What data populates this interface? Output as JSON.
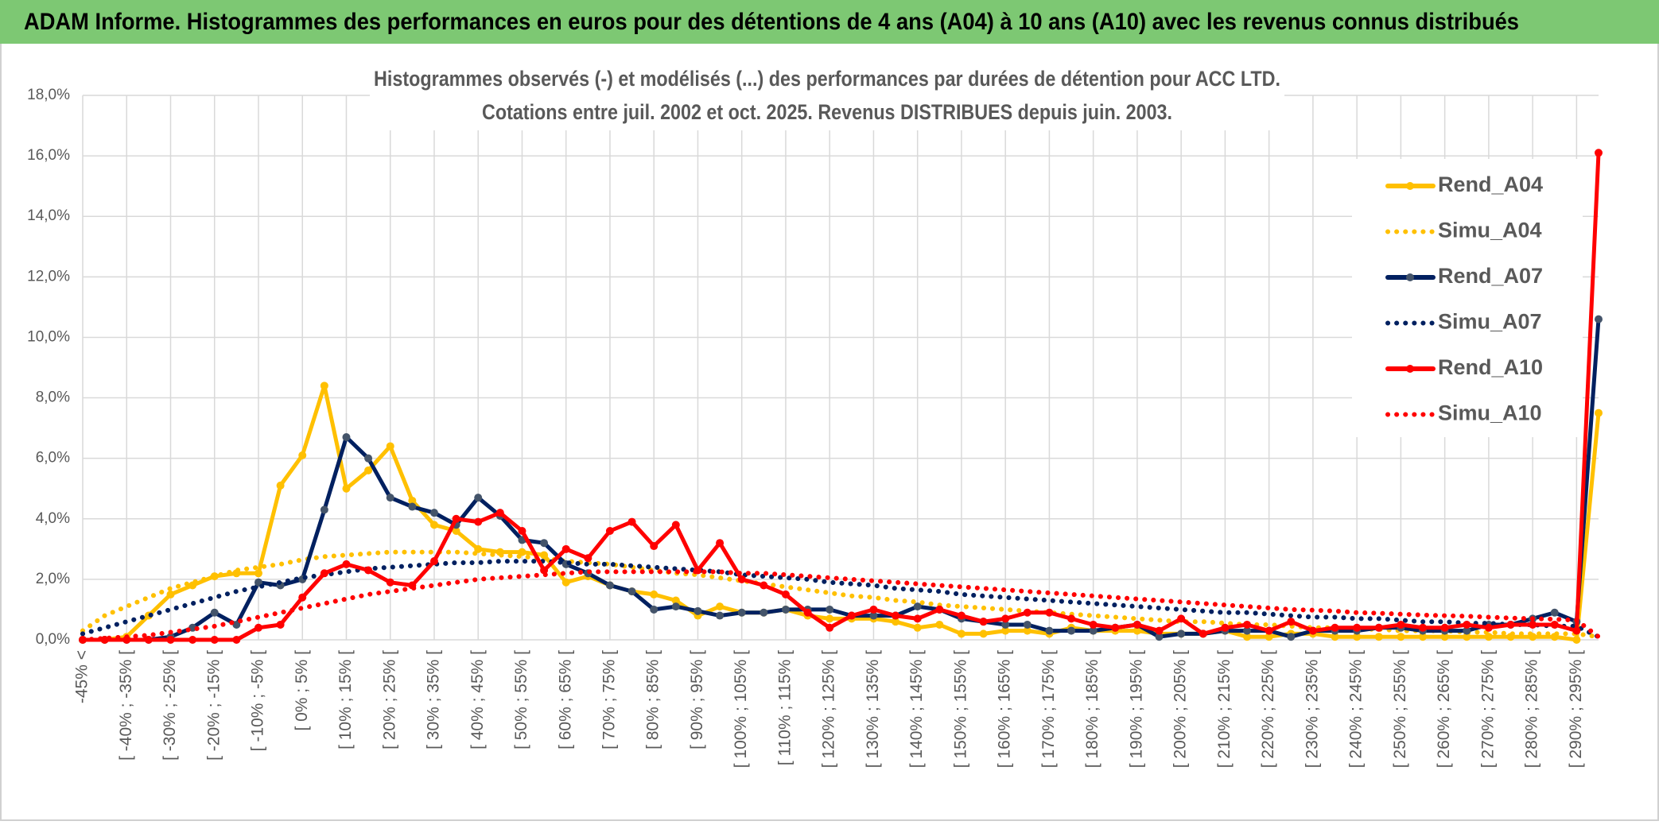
{
  "header": {
    "title": "ADAM Informe. Histogrammes des performances en euros pour des détentions de 4 ans (A04) à 10 ans (A10) avec les revenus connus distribués"
  },
  "chart_data": {
    "type": "line",
    "title": "Histogrammes observés (-) et modélisés (...) des performances par durées de détention pour ACC LTD.",
    "subtitle": "Cotations entre juil. 2002 et oct. 2025. Revenus DISTRIBUES depuis juin. 2003.",
    "categories": [
      "-45% <",
      null,
      "[ -40% ; -35% [",
      null,
      "[ -30% ; -25% [",
      null,
      "[ -20% ; -15% [",
      null,
      "[ -10% ; -5% [",
      null,
      "[ 0% ; 5% [",
      null,
      "[ 10% ; 15% [",
      null,
      "[ 20% ; 25% [",
      null,
      "[ 30% ; 35% [",
      null,
      "[ 40% ; 45% [",
      null,
      "[ 50% ; 55% [",
      null,
      "[ 60% ; 65% [",
      null,
      "[ 70% ; 75% [",
      null,
      "[ 80% ; 85% [",
      null,
      "[ 90% ; 95% [",
      null,
      "[ 100% ; 105% [",
      null,
      "[ 110% ; 115% [",
      null,
      "[ 120% ; 125% [",
      null,
      "[ 130% ; 135% [",
      null,
      "[ 140% ; 145% [",
      null,
      "[ 150% ; 155% [",
      null,
      "[ 160% ; 165% [",
      null,
      "[ 170% ; 175% [",
      null,
      "[ 180% ; 185% [",
      null,
      "[ 190% ; 195% [",
      null,
      "[ 200% ; 205% [",
      null,
      "[ 210% ; 215% [",
      null,
      "[ 220% ; 225% [",
      null,
      "[ 230% ; 235% [",
      null,
      "[ 240% ; 245% [",
      null,
      "[ 250% ; 255% [",
      null,
      "[ 260% ; 265% [",
      null,
      "[ 270% ; 275% [",
      null,
      "[ 280% ; 285% [",
      null,
      "[ 290% ; 295% [",
      null
    ],
    "series": [
      {
        "name": "Rend_A04",
        "color": "#FFC000",
        "line_style": "solid",
        "values": [
          0,
          0,
          0.1,
          0.8,
          1.5,
          1.8,
          2.1,
          2.2,
          2.2,
          5.1,
          6.1,
          8.4,
          5.0,
          5.6,
          6.4,
          4.6,
          3.8,
          3.6,
          3.0,
          2.9,
          2.9,
          2.8,
          1.9,
          2.1,
          1.8,
          1.6,
          1.5,
          1.3,
          0.8,
          1.1,
          0.9,
          0.9,
          1.0,
          0.8,
          0.7,
          0.7,
          0.7,
          0.6,
          0.4,
          0.5,
          0.2,
          0.2,
          0.3,
          0.3,
          0.2,
          0.4,
          0.3,
          0.3,
          0.3,
          0.2,
          0.2,
          0.2,
          0.3,
          0.1,
          0.1,
          0.2,
          0.2,
          0.1,
          0.1,
          0.1,
          0.1,
          0.1,
          0.1,
          0.1,
          0.1,
          0.1,
          0.1,
          0.1,
          0.0,
          7.5
        ]
      },
      {
        "name": "Simu_A04",
        "color": "#FFC000",
        "line_style": "dotted",
        "values": [
          0.3,
          0.8,
          1.1,
          1.4,
          1.7,
          1.9,
          2.1,
          2.3,
          2.4,
          2.5,
          2.65,
          2.75,
          2.8,
          2.85,
          2.9,
          2.9,
          2.9,
          2.9,
          2.85,
          2.8,
          2.75,
          2.7,
          2.6,
          2.55,
          2.5,
          2.4,
          2.3,
          2.2,
          2.15,
          2.05,
          1.95,
          1.85,
          1.75,
          1.65,
          1.55,
          1.45,
          1.4,
          1.3,
          1.25,
          1.15,
          1.1,
          1.05,
          1.0,
          0.95,
          0.9,
          0.85,
          0.8,
          0.75,
          0.7,
          0.65,
          0.6,
          0.6,
          0.55,
          0.5,
          0.5,
          0.45,
          0.4,
          0.4,
          0.35,
          0.35,
          0.3,
          0.3,
          0.3,
          0.25,
          0.25,
          0.2,
          0.2,
          0.2,
          0.2,
          0.1
        ]
      },
      {
        "name": "Rend_A07",
        "color": "#002060",
        "line_style": "solid",
        "values": [
          0,
          0,
          0,
          0,
          0.1,
          0.4,
          0.9,
          0.5,
          1.9,
          1.8,
          2.0,
          4.3,
          6.7,
          6.0,
          4.7,
          4.4,
          4.2,
          3.8,
          4.7,
          4.1,
          3.3,
          3.2,
          2.5,
          2.2,
          1.8,
          1.6,
          1.0,
          1.1,
          0.95,
          0.8,
          0.9,
          0.9,
          1.0,
          1.0,
          1.0,
          0.8,
          0.8,
          0.8,
          1.1,
          1.0,
          0.7,
          0.6,
          0.5,
          0.5,
          0.3,
          0.3,
          0.3,
          0.4,
          0.5,
          0.1,
          0.2,
          0.2,
          0.3,
          0.3,
          0.3,
          0.1,
          0.3,
          0.3,
          0.3,
          0.4,
          0.4,
          0.3,
          0.3,
          0.3,
          0.5,
          0.5,
          0.7,
          0.9,
          0.6,
          10.6
        ]
      },
      {
        "name": "Simu_A07",
        "color": "#002060",
        "line_style": "dotted",
        "values": [
          0.2,
          0.4,
          0.6,
          0.8,
          1.0,
          1.2,
          1.4,
          1.6,
          1.75,
          1.9,
          2.05,
          2.15,
          2.25,
          2.35,
          2.4,
          2.45,
          2.5,
          2.55,
          2.55,
          2.6,
          2.6,
          2.6,
          2.55,
          2.5,
          2.5,
          2.45,
          2.4,
          2.35,
          2.3,
          2.25,
          2.15,
          2.1,
          2.05,
          2.0,
          1.9,
          1.85,
          1.8,
          1.7,
          1.65,
          1.6,
          1.5,
          1.45,
          1.4,
          1.35,
          1.3,
          1.25,
          1.2,
          1.15,
          1.1,
          1.05,
          1.0,
          0.95,
          0.9,
          0.9,
          0.85,
          0.8,
          0.75,
          0.75,
          0.7,
          0.7,
          0.65,
          0.6,
          0.6,
          0.55,
          0.55,
          0.5,
          0.5,
          0.45,
          0.45,
          0.1
        ]
      },
      {
        "name": "Rend_A10",
        "color": "#FF0000",
        "line_style": "solid",
        "values": [
          0,
          0,
          0,
          0,
          0,
          0,
          0,
          0,
          0.4,
          0.5,
          1.4,
          2.2,
          2.5,
          2.3,
          1.9,
          1.8,
          2.6,
          4.0,
          3.9,
          4.2,
          3.6,
          2.3,
          3.0,
          2.7,
          3.6,
          3.9,
          3.1,
          3.8,
          2.3,
          3.2,
          2.0,
          1.8,
          1.5,
          0.9,
          0.4,
          0.8,
          1.0,
          0.8,
          0.7,
          1.0,
          0.8,
          0.6,
          0.7,
          0.9,
          0.9,
          0.7,
          0.5,
          0.4,
          0.5,
          0.3,
          0.7,
          0.2,
          0.4,
          0.5,
          0.3,
          0.6,
          0.3,
          0.4,
          0.4,
          0.4,
          0.5,
          0.4,
          0.4,
          0.5,
          0.4,
          0.5,
          0.5,
          0.5,
          0.3,
          16.1
        ]
      },
      {
        "name": "Simu_A10",
        "color": "#FF0000",
        "line_style": "dotted",
        "values": [
          0.0,
          0.05,
          0.1,
          0.15,
          0.25,
          0.35,
          0.45,
          0.6,
          0.75,
          0.9,
          1.05,
          1.2,
          1.35,
          1.5,
          1.6,
          1.7,
          1.8,
          1.9,
          2.0,
          2.05,
          2.1,
          2.15,
          2.2,
          2.25,
          2.25,
          2.25,
          2.25,
          2.25,
          2.25,
          2.25,
          2.2,
          2.2,
          2.15,
          2.1,
          2.05,
          2.0,
          1.95,
          1.9,
          1.85,
          1.8,
          1.75,
          1.7,
          1.65,
          1.6,
          1.55,
          1.5,
          1.45,
          1.4,
          1.35,
          1.3,
          1.25,
          1.2,
          1.15,
          1.1,
          1.05,
          1.0,
          0.98,
          0.95,
          0.9,
          0.88,
          0.85,
          0.82,
          0.8,
          0.78,
          0.75,
          0.72,
          0.7,
          0.68,
          0.65,
          0.1
        ]
      }
    ],
    "ylim": [
      0,
      18
    ],
    "yticks": [
      {
        "value": 0,
        "label": "0,0%"
      },
      {
        "value": 2,
        "label": "2,0%"
      },
      {
        "value": 4,
        "label": "4,0%"
      },
      {
        "value": 6,
        "label": "6,0%"
      },
      {
        "value": 8,
        "label": "8,0%"
      },
      {
        "value": 10,
        "label": "10,0%"
      },
      {
        "value": 12,
        "label": "12,0%"
      },
      {
        "value": 14,
        "label": "14,0%"
      },
      {
        "value": 16,
        "label": "16,0%"
      },
      {
        "value": 18,
        "label": "18,0%"
      }
    ],
    "grid": true,
    "legend": "upper right"
  }
}
